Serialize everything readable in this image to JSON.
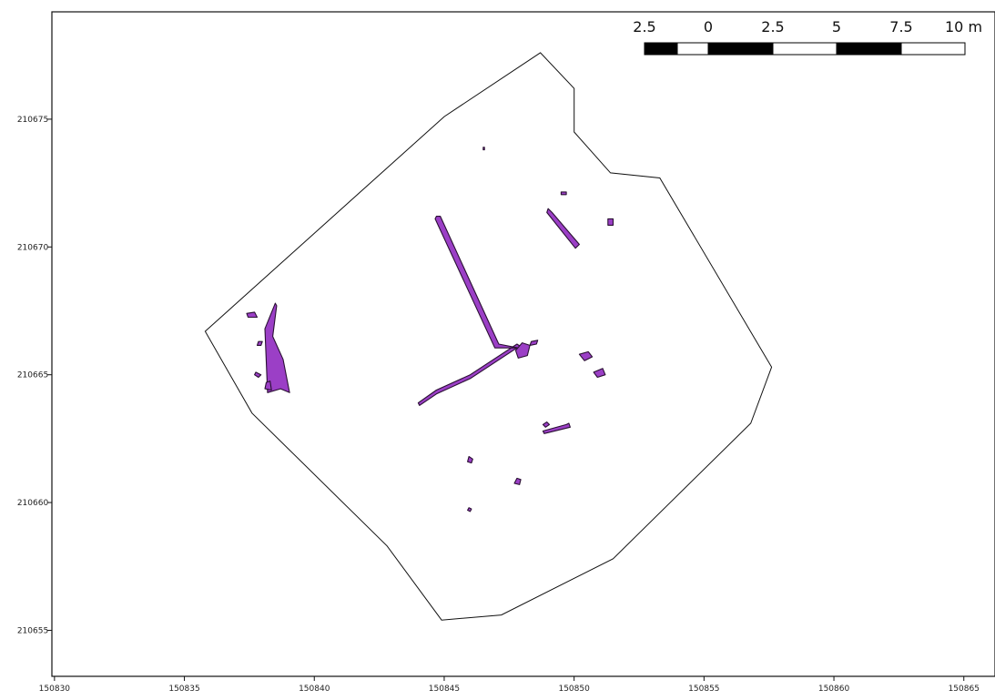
{
  "map": {
    "crs_x_range": [
      150829.9,
      150866.2
    ],
    "crs_y_range": [
      210653.2,
      210679.2
    ],
    "x_ticks": [
      {
        "value": 150830,
        "label": "150830"
      },
      {
        "value": 150835,
        "label": "150835"
      },
      {
        "value": 150840,
        "label": "150840"
      },
      {
        "value": 150845,
        "label": "150845"
      },
      {
        "value": 150850,
        "label": "150850"
      },
      {
        "value": 150855,
        "label": "150855"
      },
      {
        "value": 150860,
        "label": "150860"
      },
      {
        "value": 150865,
        "label": "150865"
      }
    ],
    "y_ticks": [
      {
        "value": 210675,
        "label": "210675"
      },
      {
        "value": 210670,
        "label": "210670"
      },
      {
        "value": 210665,
        "label": "210665"
      },
      {
        "value": 210660,
        "label": "210660"
      },
      {
        "value": 210655,
        "label": "210655"
      }
    ],
    "boundary": [
      [
        150835.8,
        210666.7
      ],
      [
        150845.0,
        210675.1
      ],
      [
        150848.7,
        210677.6
      ],
      [
        150850.0,
        210676.2
      ],
      [
        150850.0,
        210674.5
      ],
      [
        150851.4,
        210672.9
      ],
      [
        150853.3,
        210672.7
      ],
      [
        150857.6,
        210665.3
      ],
      [
        150856.8,
        210663.1
      ],
      [
        150851.5,
        210657.8
      ],
      [
        150847.2,
        210655.6
      ],
      [
        150844.9,
        210655.4
      ],
      [
        150842.8,
        210658.3
      ],
      [
        150837.6,
        210663.5
      ]
    ],
    "features": [
      [
        [
          150844.7,
          210671.2
        ],
        [
          150844.85,
          210671.2
        ],
        [
          150847.1,
          210666.2
        ],
        [
          150848.1,
          210666.0
        ],
        [
          150847.8,
          210666.2
        ],
        [
          150846.0,
          210665.0
        ],
        [
          150844.7,
          210664.4
        ],
        [
          150844.0,
          210663.9
        ],
        [
          150844.05,
          210663.8
        ],
        [
          150844.7,
          210664.25
        ],
        [
          150846.0,
          210664.85
        ],
        [
          150847.8,
          210666.05
        ],
        [
          150846.95,
          210666.05
        ],
        [
          150844.65,
          210671.1
        ]
      ],
      [
        [
          150849.0,
          210671.5
        ],
        [
          150849.15,
          210671.35
        ],
        [
          150850.2,
          210670.1
        ],
        [
          150850.05,
          210669.95
        ],
        [
          150848.95,
          210671.35
        ]
      ],
      [
        [
          150838.5,
          210667.8
        ],
        [
          150838.55,
          210667.7
        ],
        [
          150838.4,
          210666.5
        ],
        [
          150838.8,
          210665.6
        ],
        [
          150839.05,
          210664.3
        ],
        [
          150838.7,
          210664.45
        ],
        [
          150838.2,
          210664.3
        ],
        [
          150838.1,
          210666.8
        ]
      ],
      [
        [
          150837.4,
          210667.4
        ],
        [
          150837.7,
          210667.45
        ],
        [
          150837.8,
          210667.25
        ],
        [
          150837.45,
          210667.25
        ]
      ],
      [
        [
          150837.85,
          210666.3
        ],
        [
          150838.0,
          210666.3
        ],
        [
          150837.95,
          210666.15
        ],
        [
          150837.8,
          210666.15
        ]
      ],
      [
        [
          150837.75,
          210665.1
        ],
        [
          150837.95,
          210665.0
        ],
        [
          150837.85,
          210664.9
        ],
        [
          150837.7,
          210665.0
        ]
      ],
      [
        [
          150838.15,
          210664.7
        ],
        [
          150838.3,
          210664.75
        ],
        [
          150838.35,
          210664.4
        ],
        [
          150838.1,
          210664.45
        ]
      ],
      [
        [
          150848.0,
          210666.25
        ],
        [
          150848.3,
          210666.15
        ],
        [
          150848.2,
          210665.75
        ],
        [
          150847.85,
          210665.65
        ],
        [
          150847.75,
          210665.95
        ]
      ],
      [
        [
          150848.35,
          210666.3
        ],
        [
          150848.6,
          210666.35
        ],
        [
          150848.55,
          210666.2
        ],
        [
          150848.3,
          210666.15
        ]
      ],
      [
        [
          150850.2,
          210665.8
        ],
        [
          150850.55,
          210665.9
        ],
        [
          150850.7,
          210665.7
        ],
        [
          150850.4,
          210665.55
        ]
      ],
      [
        [
          150850.75,
          210665.1
        ],
        [
          150851.1,
          210665.25
        ],
        [
          150851.2,
          210665.0
        ],
        [
          150850.9,
          210664.9
        ]
      ],
      [
        [
          150848.8,
          210663.05
        ],
        [
          150848.95,
          210663.15
        ],
        [
          150849.05,
          210663.05
        ],
        [
          150848.9,
          210662.95
        ]
      ],
      [
        [
          150848.8,
          210662.8
        ],
        [
          150849.7,
          210663.05
        ],
        [
          150849.8,
          210663.1
        ],
        [
          150849.85,
          210662.95
        ],
        [
          150848.85,
          210662.7
        ]
      ],
      [
        [
          150845.95,
          210661.8
        ],
        [
          150846.1,
          210661.7
        ],
        [
          150846.05,
          210661.55
        ],
        [
          150845.9,
          210661.6
        ]
      ],
      [
        [
          150847.8,
          210660.95
        ],
        [
          150847.95,
          210660.9
        ],
        [
          150847.9,
          210660.7
        ],
        [
          150847.7,
          210660.75
        ]
      ],
      [
        [
          150845.95,
          210659.8
        ],
        [
          150846.05,
          210659.75
        ],
        [
          150846.0,
          210659.65
        ],
        [
          150845.9,
          210659.7
        ]
      ],
      [
        [
          150851.3,
          210671.1
        ],
        [
          150851.5,
          210671.1
        ],
        [
          150851.5,
          210670.85
        ],
        [
          150851.3,
          210670.85
        ]
      ],
      [
        [
          150849.5,
          210672.15
        ],
        [
          150849.7,
          210672.15
        ],
        [
          150849.7,
          210672.05
        ],
        [
          150849.5,
          210672.05
        ]
      ],
      [
        [
          150846.5,
          210673.9
        ],
        [
          150846.55,
          210673.9
        ],
        [
          150846.55,
          210673.8
        ],
        [
          150846.5,
          210673.8
        ]
      ]
    ],
    "scalebar": {
      "labels": [
        "2.5",
        "0",
        "2.5",
        "5",
        "7.5",
        "10 m"
      ]
    },
    "colors": {
      "feature_fill": "#9b3fc6",
      "feature_stroke": "#2a1033",
      "line": "#111111"
    }
  }
}
